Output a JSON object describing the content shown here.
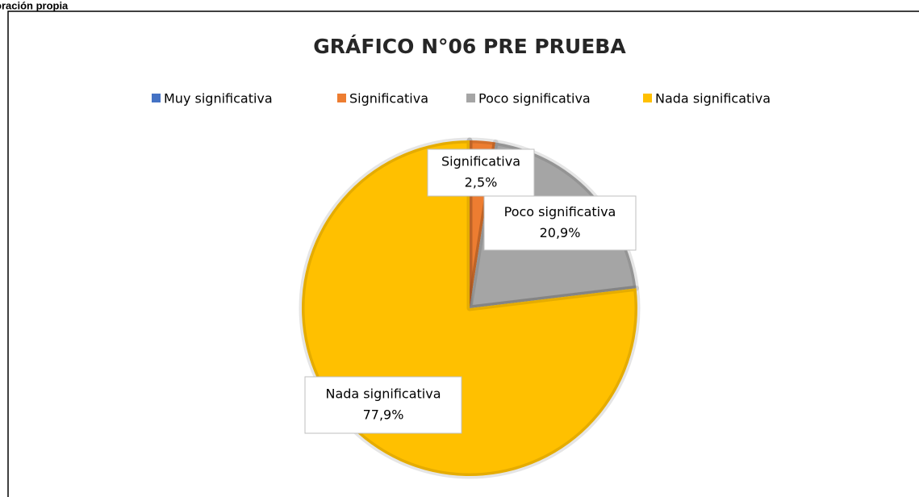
{
  "source": "oración propia",
  "chart_data": {
    "type": "pie",
    "title": "GRÁFICO N°06 PRE PRUEBA",
    "categories": [
      "Muy significativa",
      "Significativa",
      "Poco significativa",
      "Nada significativa"
    ],
    "values": [
      0,
      2.5,
      20.9,
      77.9
    ],
    "value_labels": [
      null,
      "2,5%",
      "20,9%",
      "77,9%"
    ],
    "colors": [
      "#4472c4",
      "#ed7d31",
      "#a5a5a5",
      "#ffc000"
    ],
    "legend": "top"
  }
}
